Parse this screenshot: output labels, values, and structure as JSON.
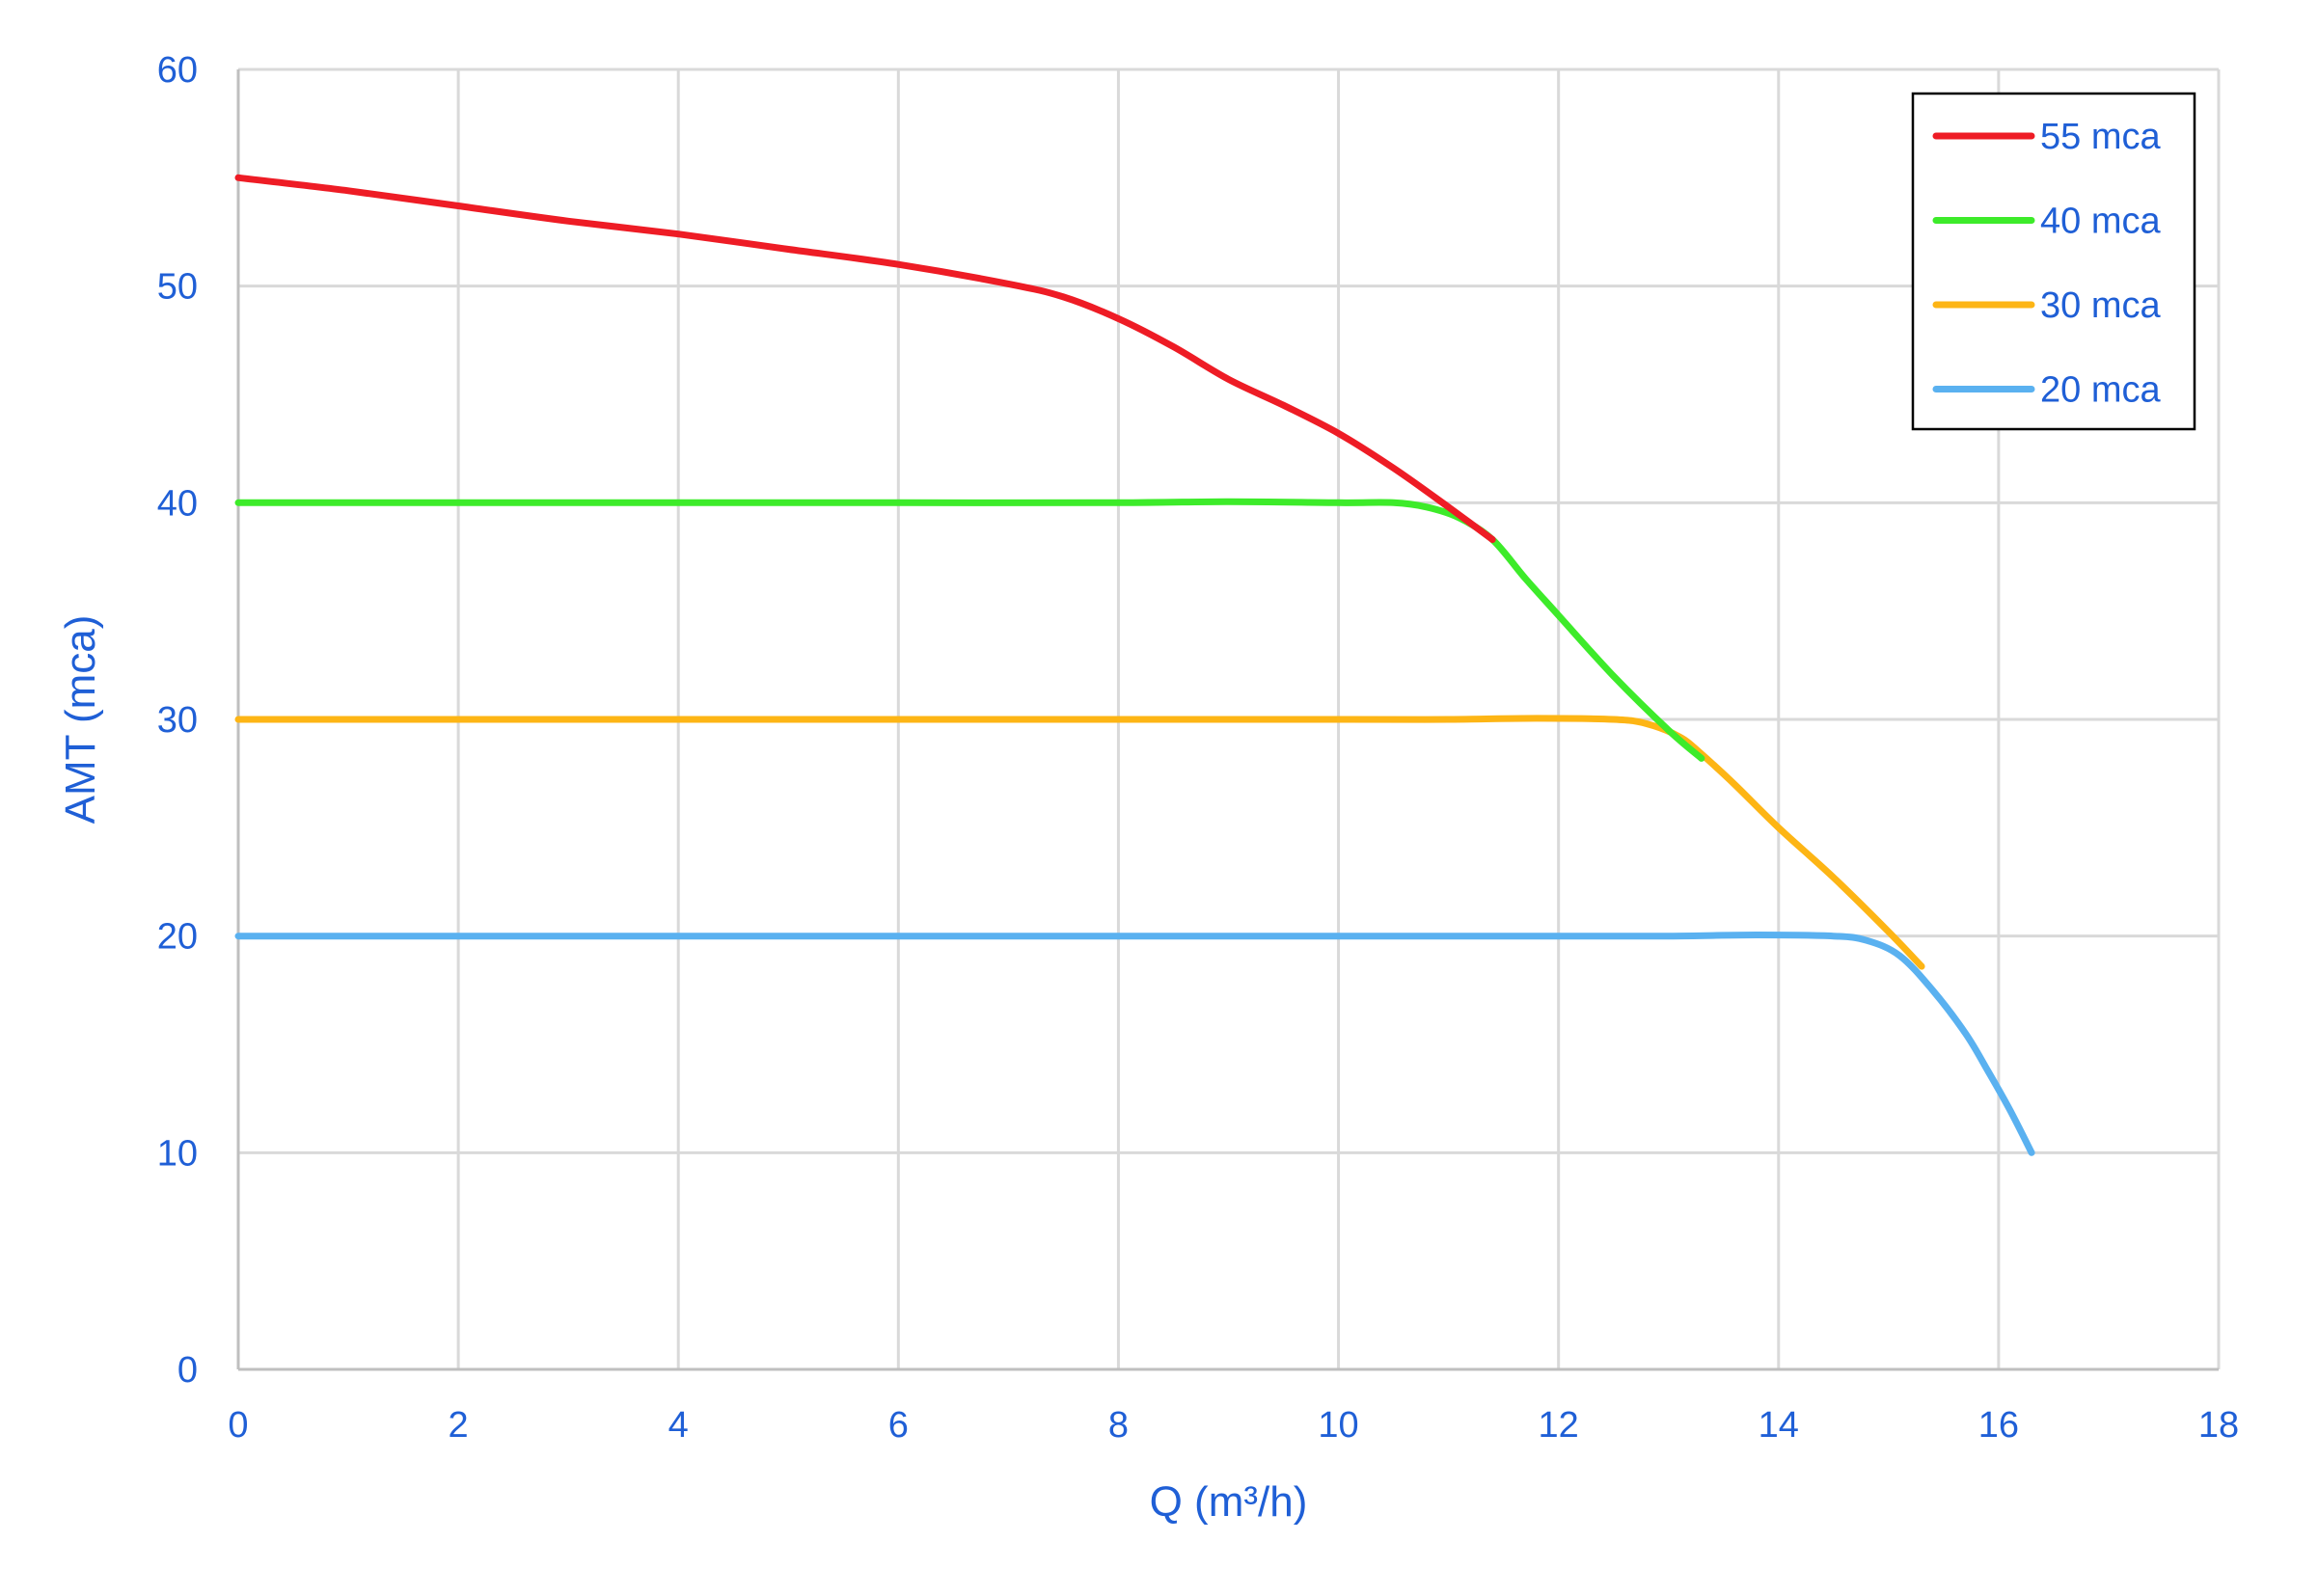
{
  "chart_data": {
    "type": "line",
    "title": "",
    "xlabel": "Q (m³/h)",
    "ylabel": "AMT (mca)",
    "xlim": [
      0,
      18
    ],
    "ylim": [
      0,
      60
    ],
    "x_ticks": [
      0,
      2,
      4,
      6,
      8,
      10,
      12,
      14,
      16,
      18
    ],
    "y_ticks": [
      0,
      10,
      20,
      30,
      40,
      50,
      60
    ],
    "grid": true,
    "legend_position": "top-right",
    "text_color": "#1F5FD6",
    "series": [
      {
        "name": "55 mca",
        "color": "#EE1C25",
        "x": [
          0,
          1,
          2,
          3,
          4,
          5,
          6,
          7,
          7.5,
          8,
          8.5,
          9,
          9.5,
          10,
          10.5,
          11,
          11.4
        ],
        "y": [
          55,
          54.4,
          53.7,
          53.0,
          52.4,
          51.7,
          51.0,
          50.1,
          49.5,
          48.5,
          47.2,
          45.7,
          44.5,
          43.2,
          41.6,
          39.8,
          38.3
        ]
      },
      {
        "name": "40 mca",
        "color": "#3DEB2A",
        "x": [
          0,
          2,
          4,
          6,
          8,
          9,
          10,
          10.5,
          10.8,
          11.1,
          11.4,
          11.7,
          12,
          12.5,
          13,
          13.3
        ],
        "y": [
          40,
          40,
          40,
          40,
          40,
          40.05,
          40,
          40,
          39.8,
          39.3,
          38.3,
          36.5,
          34.8,
          32.0,
          29.5,
          28.2
        ]
      },
      {
        "name": "30 mca",
        "color": "#FDB515",
        "x": [
          0,
          2,
          4,
          6,
          8,
          10,
          11,
          11.8,
          12.5,
          12.8,
          13.1,
          13.3,
          13.6,
          14,
          14.5,
          15,
          15.3
        ],
        "y": [
          30,
          30,
          30,
          30,
          30,
          30,
          30,
          30.05,
          30,
          29.8,
          29.2,
          28.4,
          27.0,
          25.0,
          22.7,
          20.2,
          18.6
        ]
      },
      {
        "name": "20 mca",
        "color": "#5AB1F0",
        "x": [
          0,
          2,
          4,
          6,
          8,
          10,
          12,
          13,
          13.8,
          14.5,
          14.8,
          15.1,
          15.4,
          15.7,
          15.9,
          16.1,
          16.3
        ],
        "y": [
          20,
          20,
          20,
          20,
          20,
          20,
          20,
          20,
          20.05,
          20,
          19.8,
          19.1,
          17.5,
          15.5,
          13.8,
          12.0,
          10
        ]
      }
    ]
  }
}
